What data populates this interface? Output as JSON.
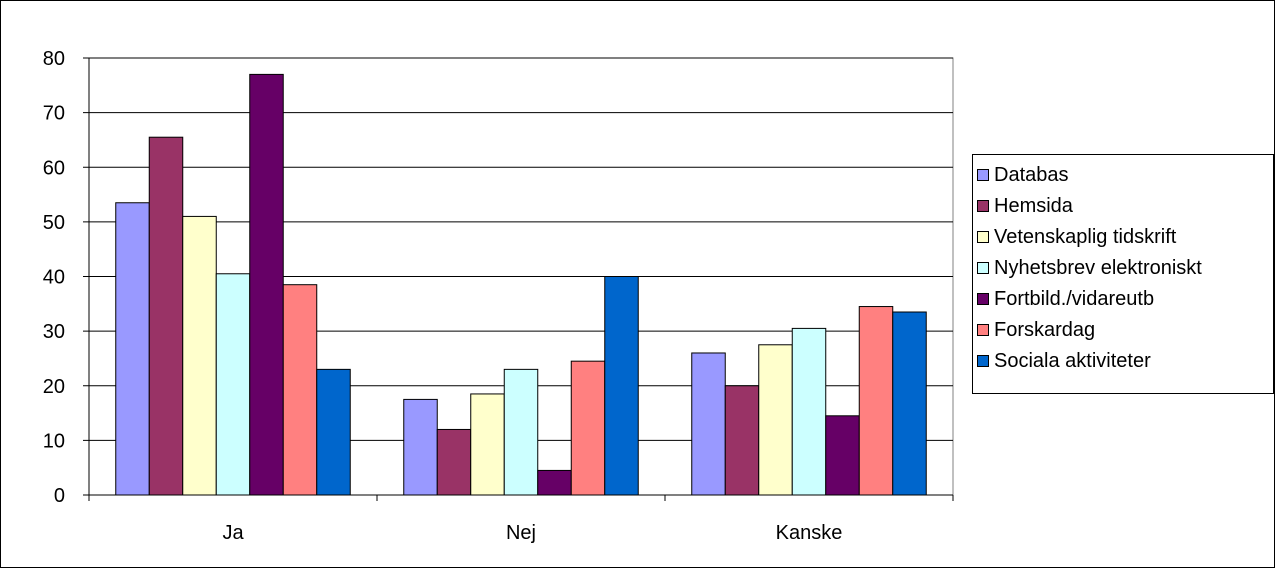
{
  "chart_data": {
    "type": "bar",
    "title": "",
    "xlabel": "",
    "ylabel": "",
    "categories": [
      "Ja",
      "Nej",
      "Kanske"
    ],
    "ylim": [
      0,
      80
    ],
    "yticks": [
      0,
      10,
      20,
      30,
      40,
      50,
      60,
      70,
      80
    ],
    "ytick_labels": [
      "0",
      "10",
      "20",
      "30",
      "40",
      "50",
      "60",
      "70",
      "80"
    ],
    "grid": true,
    "legend_position": "right",
    "series": [
      {
        "name": "Databas",
        "color": "#9999ff",
        "values": [
          53.5,
          17.5,
          26
        ]
      },
      {
        "name": "Hemsida",
        "color": "#993366",
        "values": [
          65.5,
          12,
          20
        ]
      },
      {
        "name": "Vetenskaplig tidskrift",
        "color": "#ffffcc",
        "values": [
          51,
          18.5,
          27.5
        ]
      },
      {
        "name": "Nyhetsbrev elektroniskt",
        "color": "#ccffff",
        "values": [
          40.5,
          23,
          30.5
        ]
      },
      {
        "name": "Fortbild./vidareutb",
        "color": "#660066",
        "values": [
          77,
          4.5,
          14.5
        ]
      },
      {
        "name": "Forskardag",
        "color": "#ff8080",
        "values": [
          38.5,
          24.5,
          34.5
        ]
      },
      {
        "name": "Sociala aktiviteter",
        "color": "#0066cc",
        "values": [
          23,
          40,
          33.5
        ]
      }
    ]
  }
}
